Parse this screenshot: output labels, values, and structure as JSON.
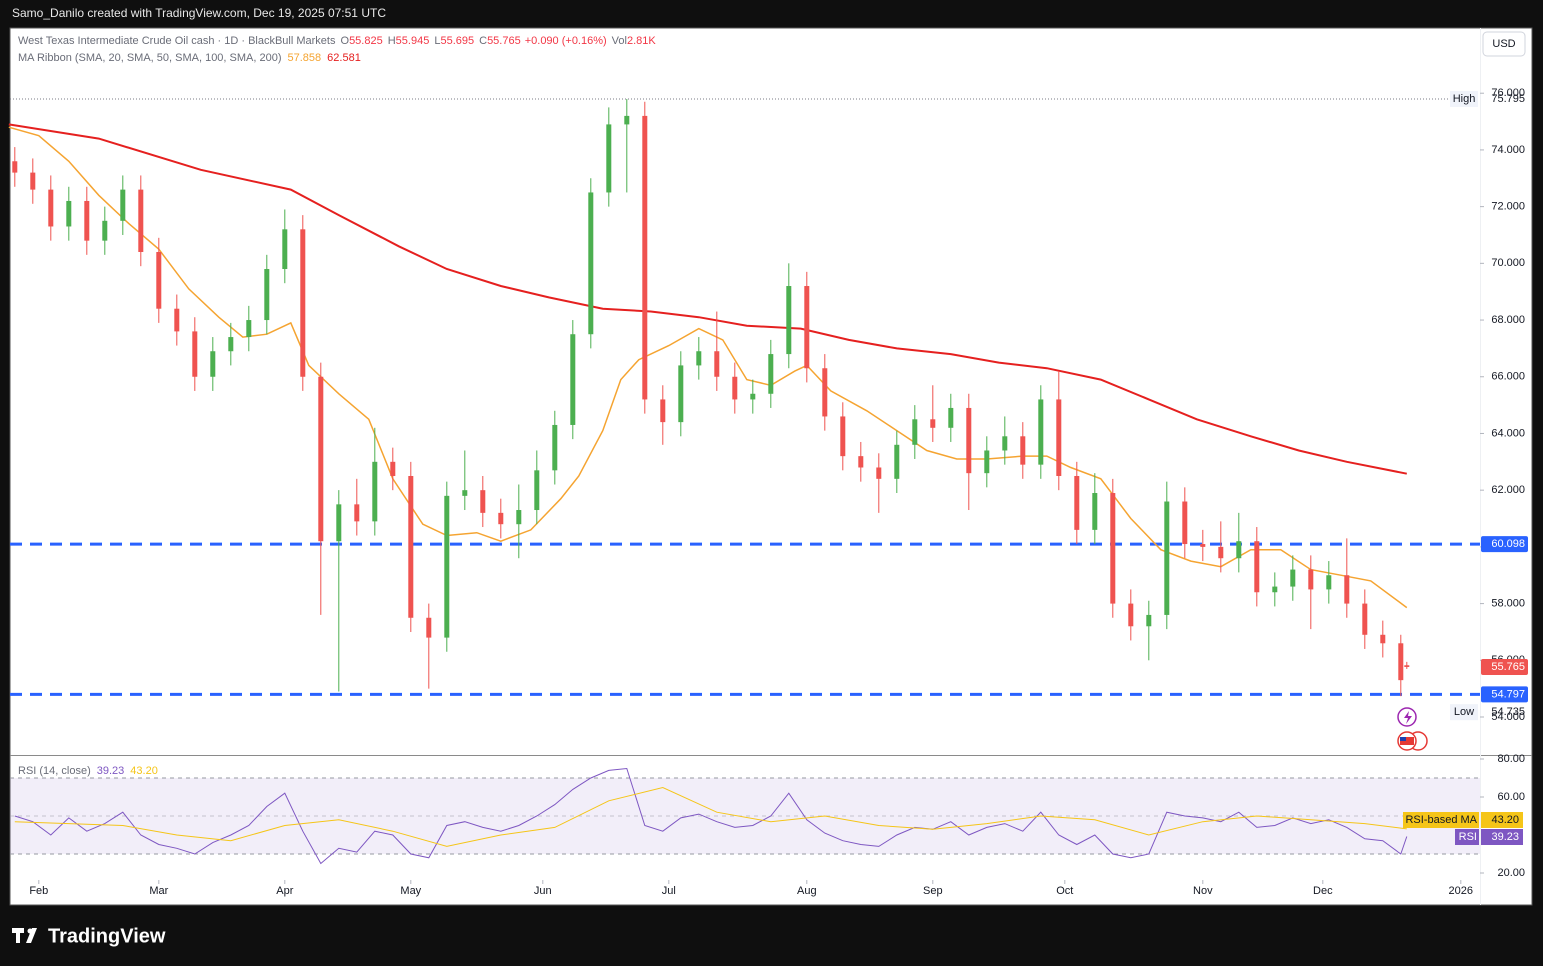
{
  "attribution": "Samo_Danilo created with TradingView.com, Dec 19, 2025 07:51 UTC",
  "currency_button": "USD",
  "brand": "TradingView",
  "chart_data": [
    {
      "type": "candlestick",
      "title": "West Texas Intermediate Crude Oil cash · 1D · BlackBull Markets",
      "ohlc_labels": [
        "O",
        "H",
        "L",
        "C"
      ],
      "change": "+0.090 (+0.16%)",
      "volume_label": "Vol",
      "volume": "2.81K",
      "up_color": "#4caf50",
      "down_color": "#ef5350",
      "x": [
        -4,
        -1,
        2,
        5,
        8,
        11,
        14,
        17,
        20,
        23,
        26,
        29,
        32,
        35,
        38,
        41,
        44,
        47,
        50,
        53,
        56,
        59,
        62,
        65,
        68,
        71,
        74,
        77,
        80,
        83,
        86,
        89,
        92,
        95,
        98,
        101,
        104,
        107,
        110,
        113,
        116,
        119,
        122,
        125,
        128,
        131,
        134,
        137,
        140,
        143,
        146,
        149,
        152,
        155,
        158,
        161,
        164,
        167,
        170,
        173,
        176,
        179,
        182,
        185,
        188,
        191,
        194,
        197,
        200,
        203,
        206,
        209,
        212,
        215,
        218,
        221,
        224,
        227,
        228
      ],
      "open": [
        73.6,
        73.2,
        72.6,
        71.3,
        72.2,
        70.8,
        71.5,
        72.6,
        70.4,
        68.4,
        67.6,
        66.0,
        66.9,
        67.4,
        68.0,
        69.8,
        71.2,
        66.0,
        60.2,
        61.5,
        60.9,
        63.0,
        62.5,
        57.5,
        56.8,
        61.8,
        62.0,
        61.2,
        60.8,
        61.3,
        62.7,
        64.3,
        67.5,
        72.5,
        74.9,
        75.2,
        65.2,
        64.4,
        66.4,
        66.9,
        66.0,
        65.2,
        65.4,
        66.8,
        69.2,
        66.3,
        64.6,
        63.2,
        62.8,
        62.4,
        63.6,
        64.5,
        64.2,
        64.9,
        62.6,
        63.4,
        63.9,
        62.9,
        65.2,
        62.5,
        60.6,
        61.9,
        58.0,
        57.2,
        57.6,
        61.6,
        60.1,
        60.0,
        59.6,
        60.2,
        58.4,
        58.6,
        59.2,
        58.5,
        59.0,
        58.0,
        56.9,
        56.6,
        55.825
      ],
      "high": [
        74.1,
        73.7,
        73.1,
        72.7,
        72.7,
        72.0,
        73.1,
        73.1,
        70.9,
        68.9,
        68.1,
        67.4,
        67.9,
        68.5,
        70.3,
        71.9,
        71.7,
        66.5,
        62.0,
        62.4,
        64.2,
        63.5,
        63.0,
        58.0,
        62.3,
        63.4,
        62.5,
        61.7,
        62.2,
        63.4,
        64.8,
        68.0,
        73.0,
        75.5,
        75.795,
        75.7,
        65.7,
        66.9,
        67.4,
        68.3,
        66.5,
        65.9,
        67.3,
        70.0,
        69.7,
        66.8,
        65.1,
        63.7,
        63.3,
        64.1,
        65.0,
        65.7,
        65.4,
        65.4,
        63.9,
        64.6,
        64.4,
        65.7,
        66.2,
        63.0,
        62.6,
        62.4,
        58.5,
        58.1,
        62.3,
        62.1,
        60.6,
        60.9,
        61.2,
        60.7,
        59.1,
        59.7,
        59.7,
        59.5,
        60.3,
        58.5,
        57.4,
        56.9,
        55.945
      ],
      "low": [
        72.7,
        72.1,
        70.8,
        70.8,
        70.3,
        70.3,
        71.0,
        69.9,
        67.9,
        67.1,
        65.5,
        65.5,
        66.4,
        66.9,
        67.5,
        69.3,
        65.5,
        57.6,
        54.9,
        60.4,
        60.4,
        62.0,
        57.0,
        55.0,
        56.3,
        61.3,
        60.7,
        60.3,
        59.6,
        60.8,
        62.2,
        63.8,
        67.0,
        72.0,
        72.5,
        64.7,
        63.6,
        63.9,
        65.9,
        65.5,
        64.7,
        64.7,
        64.9,
        66.3,
        65.8,
        64.1,
        62.7,
        62.3,
        61.2,
        61.9,
        63.1,
        63.7,
        63.7,
        61.3,
        62.1,
        62.9,
        62.4,
        62.4,
        62.0,
        60.1,
        60.1,
        57.5,
        56.7,
        56.0,
        57.1,
        59.6,
        59.5,
        59.1,
        59.1,
        57.9,
        57.9,
        58.1,
        57.1,
        58.0,
        57.5,
        56.4,
        56.1,
        54.735,
        55.695
      ],
      "close": [
        73.2,
        72.6,
        71.3,
        72.2,
        70.8,
        71.5,
        72.6,
        70.4,
        68.4,
        67.6,
        66.0,
        66.9,
        67.4,
        68.0,
        69.8,
        71.2,
        66.0,
        60.2,
        61.5,
        60.9,
        63.0,
        62.5,
        57.5,
        56.8,
        61.8,
        62.0,
        61.2,
        60.8,
        61.3,
        62.7,
        64.3,
        67.5,
        72.5,
        74.9,
        75.2,
        65.2,
        64.4,
        66.4,
        66.9,
        66.0,
        65.2,
        65.4,
        66.8,
        69.2,
        66.3,
        64.6,
        63.2,
        62.8,
        62.4,
        63.6,
        64.5,
        64.2,
        64.9,
        62.6,
        63.4,
        63.9,
        62.9,
        65.2,
        62.5,
        60.6,
        61.9,
        58.0,
        57.2,
        57.6,
        61.6,
        60.1,
        60.0,
        59.6,
        60.2,
        58.4,
        58.6,
        59.2,
        58.5,
        59.0,
        58.0,
        56.9,
        56.6,
        55.3,
        55.765
      ],
      "ma_ribbon": {
        "label": "MA Ribbon (SMA, 20, SMA, 50, SMA, 100, SMA, 200)",
        "lines": [
          {
            "color": "#f5a431",
            "x": [
              -5,
              0,
              5,
              10,
              15,
              20,
              25,
              30,
              34,
              38,
              42,
              45,
              50,
              55,
              59,
              64,
              68,
              73,
              77,
              82,
              87,
              90,
              94,
              97,
              100,
              105,
              110,
              114,
              118,
              122,
              126,
              128,
              132,
              138,
              143,
              148,
              153,
              158,
              164,
              168,
              172,
              177,
              182,
              187,
              192,
              197,
              202,
              207,
              212,
              217,
              222,
              228
            ],
            "values": [
              74.8,
              74.5,
              73.6,
              72.4,
              71.4,
              70.5,
              69.1,
              68.1,
              67.4,
              67.5,
              67.9,
              66.4,
              65.4,
              64.5,
              62.4,
              60.8,
              60.4,
              60.5,
              60.2,
              60.6,
              61.7,
              62.5,
              64.1,
              65.9,
              66.6,
              67.1,
              67.7,
              67.3,
              65.9,
              65.7,
              66.2,
              66.4,
              65.5,
              64.8,
              64.1,
              63.4,
              63.1,
              63.1,
              63.2,
              63.2,
              62.8,
              62.4,
              61.0,
              59.9,
              59.5,
              59.3,
              59.9,
              59.9,
              59.2,
              59.0,
              58.8,
              57.858
            ]
          },
          {
            "color": "#e5201f",
            "x": [
              -5,
              10,
              27,
              42,
              50,
              60,
              68,
              77,
              85,
              94,
              102,
              110,
              118,
              127,
              135,
              143,
              152,
              160,
              168,
              177,
              185,
              193,
              202,
              210,
              218,
              228
            ],
            "values": [
              74.9,
              74.4,
              73.3,
              72.6,
              71.7,
              70.6,
              69.8,
              69.2,
              68.8,
              68.4,
              68.3,
              68.1,
              67.8,
              67.7,
              67.3,
              67.0,
              66.8,
              66.5,
              66.3,
              65.9,
              65.2,
              64.5,
              63.9,
              63.4,
              63.0,
              62.581
            ]
          }
        ]
      },
      "levels": [
        {
          "value": 60.098,
          "color": "#2962ff"
        },
        {
          "value": 54.797,
          "color": "#2962ff"
        }
      ],
      "high_label": "High",
      "low_label": "Low",
      "xlim": [
        -4.8,
        240.2
      ],
      "xticks": [
        {
          "value": 0,
          "label": "Feb"
        },
        {
          "value": 20,
          "label": "Mar"
        },
        {
          "value": 41,
          "label": "Apr"
        },
        {
          "value": 62,
          "label": "May"
        },
        {
          "value": 84,
          "label": "Jun"
        },
        {
          "value": 105,
          "label": "Jul"
        },
        {
          "value": 128,
          "label": "Aug"
        },
        {
          "value": 149,
          "label": "Sep"
        },
        {
          "value": 171,
          "label": "Oct"
        },
        {
          "value": 194,
          "label": "Nov"
        },
        {
          "value": 214,
          "label": "Dec"
        },
        {
          "value": 237,
          "label": "2026"
        }
      ],
      "ylim": [
        52.66,
        78.3
      ],
      "yticks": [
        {
          "value": 54,
          "label": "54.000"
        },
        {
          "value": 56,
          "label": "56.000"
        },
        {
          "value": 58,
          "label": "58.000"
        },
        {
          "value": 60,
          "label": "60.000"
        },
        {
          "value": 62,
          "label": "62.000"
        },
        {
          "value": 64,
          "label": "64.000"
        },
        {
          "value": 66,
          "label": "66.000"
        },
        {
          "value": 68,
          "label": "68.000"
        },
        {
          "value": 70,
          "label": "70.000"
        },
        {
          "value": 72,
          "label": "72.000"
        },
        {
          "value": 74,
          "label": "74.000"
        },
        {
          "value": 76,
          "label": "76.000"
        }
      ]
    },
    {
      "type": "line",
      "title": "RSI (14, close)",
      "series": [
        {
          "name": "RSI",
          "color": "#7e57c2",
          "values": [
            50,
            47,
            40,
            49,
            42,
            46,
            52,
            40,
            35,
            33,
            30,
            36,
            40,
            45,
            55,
            62,
            42,
            25,
            33,
            31,
            42,
            40,
            30,
            28,
            45,
            47,
            44,
            42,
            45,
            50,
            56,
            64,
            70,
            74,
            75,
            45,
            42,
            49,
            51,
            47,
            44,
            45,
            50,
            62,
            48,
            41,
            37,
            35,
            34,
            40,
            44,
            43,
            47,
            40,
            44,
            46,
            42,
            52,
            40,
            35,
            40,
            30,
            28,
            30,
            52,
            50,
            49,
            47,
            52,
            44,
            45,
            49,
            46,
            48,
            44,
            38,
            37,
            30,
            39.23
          ]
        },
        {
          "name": "RSI-based MA",
          "color": "#f5c518",
          "x": [
            -4,
            5,
            14,
            23,
            32,
            41,
            50,
            59,
            68,
            77,
            86,
            95,
            104,
            113,
            122,
            131,
            140,
            149,
            158,
            167,
            176,
            185,
            194,
            203,
            212,
            221,
            228
          ],
          "values": [
            47,
            46,
            45,
            40,
            37,
            45,
            48,
            42,
            34,
            40,
            44,
            58,
            65,
            52,
            47,
            50,
            45,
            43,
            46,
            50,
            48,
            40,
            47,
            50,
            48,
            46,
            43.2
          ],
          "value_labels": [
            null,
            null,
            null,
            null,
            null,
            null,
            null,
            null,
            null,
            null,
            null,
            null,
            null,
            null,
            null,
            null,
            null,
            null,
            null,
            null,
            null,
            null,
            null,
            null,
            null,
            null,
            "43.20"
          ]
        }
      ],
      "band": [
        30,
        70
      ],
      "midline": 50,
      "band_color": "#7e57c2",
      "ylim": [
        16.32,
        81.05
      ],
      "yticks": [
        {
          "value": 20,
          "label": "20.00"
        },
        {
          "value": 60,
          "label": "60.00"
        },
        {
          "value": 80,
          "label": "80.00"
        }
      ]
    }
  ]
}
